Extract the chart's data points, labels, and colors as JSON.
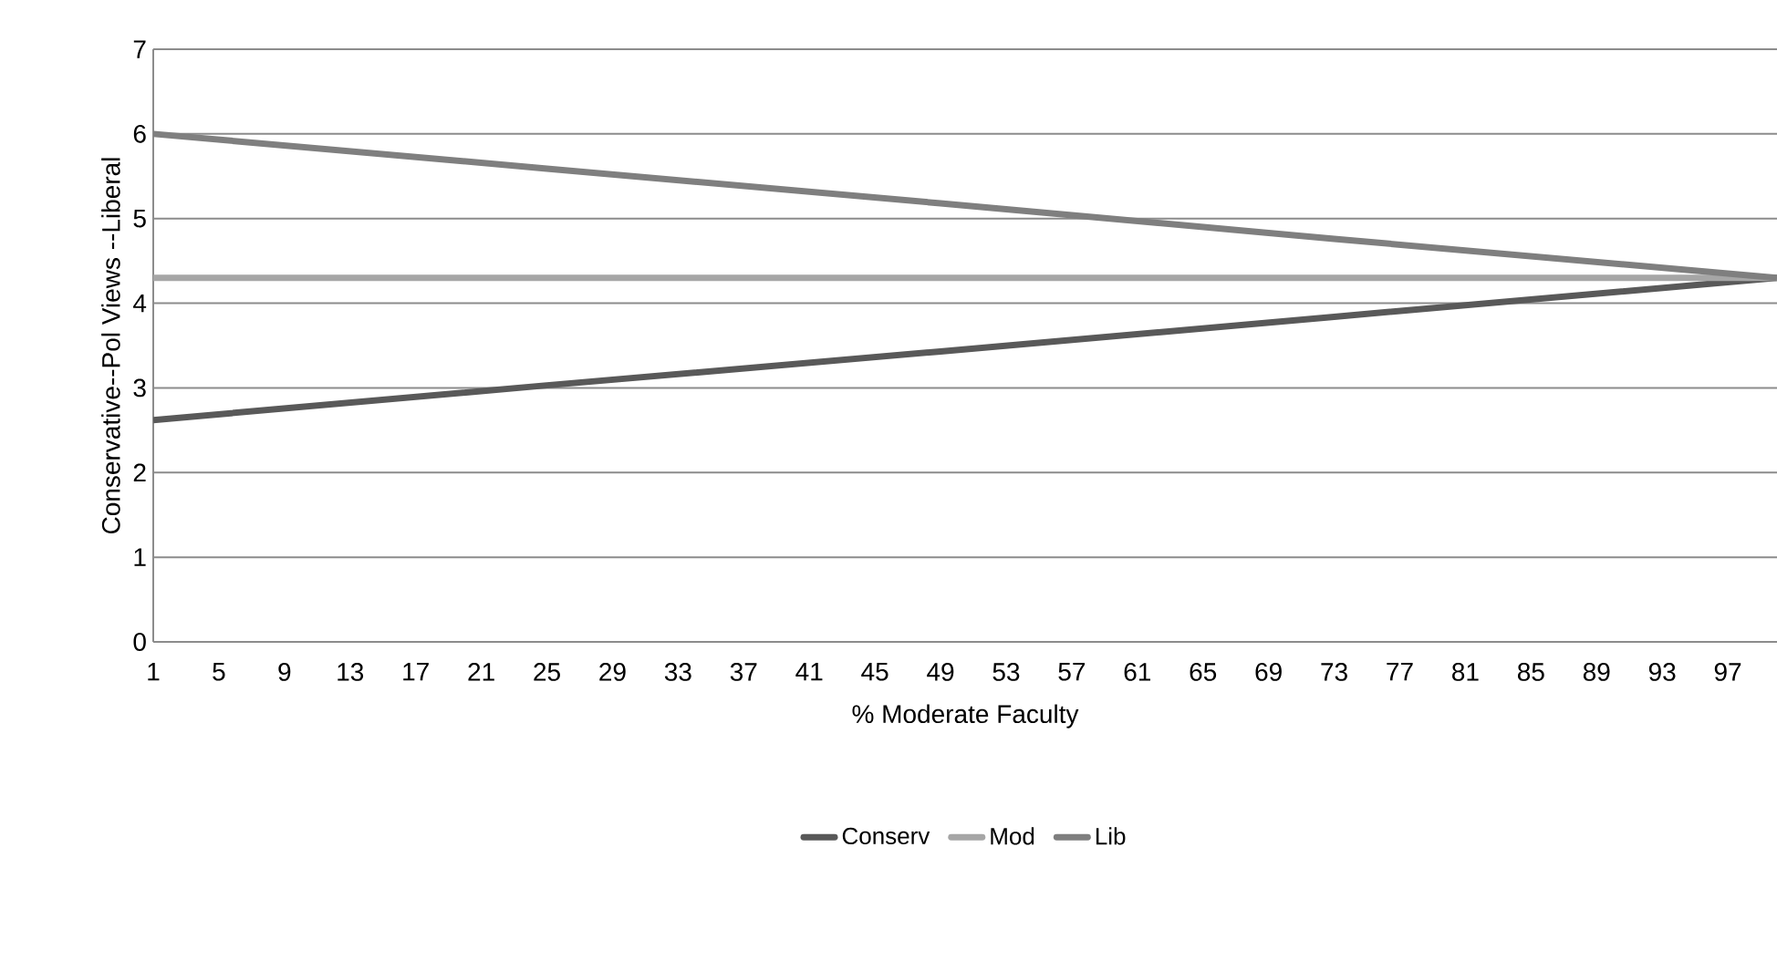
{
  "chart_data": {
    "type": "line",
    "xlabel": "% Moderate Faculty",
    "ylabel": "Conservative--Pol Views --Liberal",
    "xlim": [
      1,
      100
    ],
    "xticks": [
      1,
      5,
      9,
      13,
      17,
      21,
      25,
      29,
      33,
      37,
      41,
      45,
      49,
      53,
      57,
      61,
      65,
      69,
      73,
      77,
      81,
      85,
      89,
      93,
      97
    ],
    "ylim": [
      0,
      7
    ],
    "yticks": [
      0,
      1,
      2,
      3,
      4,
      5,
      6,
      7
    ],
    "grid": "y",
    "legend": "bottom",
    "line_style": "solid",
    "marker": "none",
    "series": [
      {
        "name": "Conserv",
        "color": "#595959",
        "x": [
          1,
          25,
          49,
          73,
          100
        ],
        "values": [
          2.62,
          3.03,
          3.43,
          3.84,
          4.3
        ]
      },
      {
        "name": "Mod",
        "color": "#a6a6a6",
        "x": [
          1,
          25,
          49,
          73,
          100
        ],
        "values": [
          4.3,
          4.3,
          4.3,
          4.3,
          4.3
        ]
      },
      {
        "name": "Lib",
        "color": "#7f7f7f",
        "x": [
          1,
          25,
          49,
          73,
          100
        ],
        "values": [
          6.0,
          5.59,
          5.18,
          4.76,
          4.3
        ]
      }
    ]
  }
}
